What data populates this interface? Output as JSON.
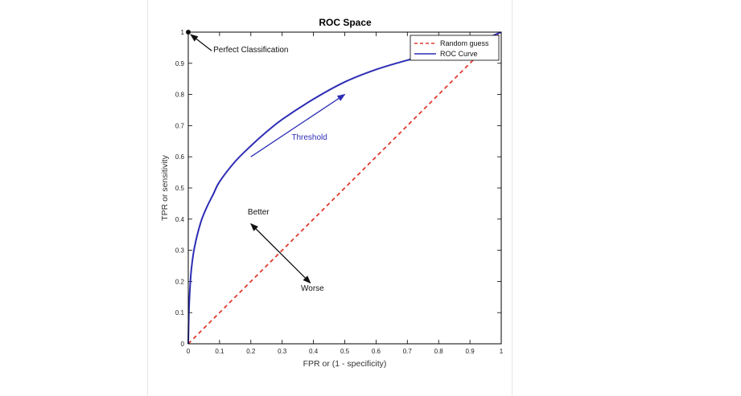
{
  "chart_data": {
    "type": "line",
    "title": "ROC Space",
    "xlabel": "FPR or (1 - specificity)",
    "ylabel": "TPR or sensitivity",
    "xlim": [
      0,
      1
    ],
    "ylim": [
      0,
      1
    ],
    "xticks": [
      "0",
      "0.1",
      "0.2",
      "0.3",
      "0.4",
      "0.5",
      "0.6",
      "0.7",
      "0.8",
      "0.9",
      "1"
    ],
    "yticks": [
      "0",
      "0.1",
      "0.2",
      "0.3",
      "0.4",
      "0.5",
      "0.6",
      "0.7",
      "0.8",
      "0.9",
      "1"
    ],
    "grid": false,
    "legend_position": "top-right",
    "series": [
      {
        "name": "Random guess",
        "style": "dashed",
        "color": "#e03a2f",
        "x": [
          0,
          1
        ],
        "y": [
          0,
          1
        ]
      },
      {
        "name": "ROC Curve",
        "style": "solid",
        "color": "#2d2db5",
        "x": [
          0,
          0.002,
          0.005,
          0.01,
          0.02,
          0.04,
          0.06,
          0.08,
          0.1,
          0.15,
          0.2,
          0.25,
          0.3,
          0.4,
          0.5,
          0.6,
          0.7,
          0.8,
          0.9,
          1.0
        ],
        "y": [
          0,
          0.1,
          0.17,
          0.24,
          0.31,
          0.39,
          0.44,
          0.48,
          0.52,
          0.585,
          0.635,
          0.68,
          0.72,
          0.785,
          0.84,
          0.88,
          0.91,
          0.935,
          0.96,
          1.0
        ]
      }
    ],
    "annotations": {
      "perfect": {
        "text": "Perfect Classification",
        "point": [
          0,
          1
        ],
        "text_at": [
          0.08,
          0.935
        ]
      },
      "threshold": {
        "text": "Threshold",
        "color": "#2d2db5",
        "arrow_from": [
          0.2,
          0.6
        ],
        "arrow_to": [
          0.5,
          0.8
        ],
        "text_at": [
          0.33,
          0.655
        ]
      },
      "better": {
        "text": "Better",
        "text_at": [
          0.19,
          0.415
        ]
      },
      "worse": {
        "text": "Worse",
        "text_at": [
          0.36,
          0.17
        ]
      },
      "better_worse_arrow": {
        "from": [
          0.39,
          0.195
        ],
        "to": [
          0.2,
          0.385
        ]
      }
    }
  }
}
